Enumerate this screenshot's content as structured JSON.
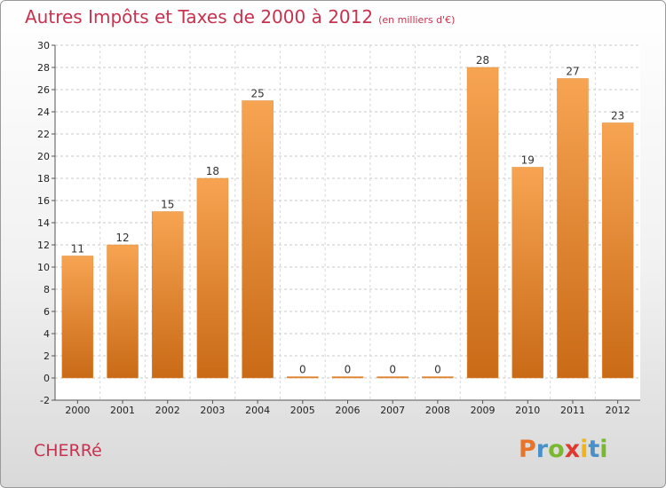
{
  "title": "Autres Impôts et Taxes de 2000 à 2012",
  "unit_label": "(en milliers d'€)",
  "commune": "CHERRé",
  "brand": {
    "letters": [
      "P",
      "r",
      "o",
      "x",
      "i",
      "t",
      "i"
    ],
    "colors": [
      "#e8742a",
      "#4a90c8",
      "#7ab830",
      "#e03a2f",
      "#f0b418",
      "#4a90c8",
      "#7ab830"
    ]
  },
  "colors": {
    "bar_light": "#f7a452",
    "bar_dark": "#c96a16",
    "title": "#c8324e"
  },
  "chart_data": {
    "type": "bar",
    "categories": [
      "2000",
      "2001",
      "2002",
      "2003",
      "2004",
      "2005",
      "2006",
      "2007",
      "2008",
      "2009",
      "2010",
      "2011",
      "2012"
    ],
    "values": [
      11,
      12,
      15,
      18,
      25,
      0,
      0,
      0,
      0,
      28,
      19,
      27,
      23
    ],
    "ylim": [
      -2,
      30
    ],
    "yticks": [
      -2,
      0,
      2,
      4,
      6,
      8,
      10,
      12,
      14,
      16,
      18,
      20,
      22,
      24,
      26,
      28,
      30
    ],
    "grid": true
  }
}
